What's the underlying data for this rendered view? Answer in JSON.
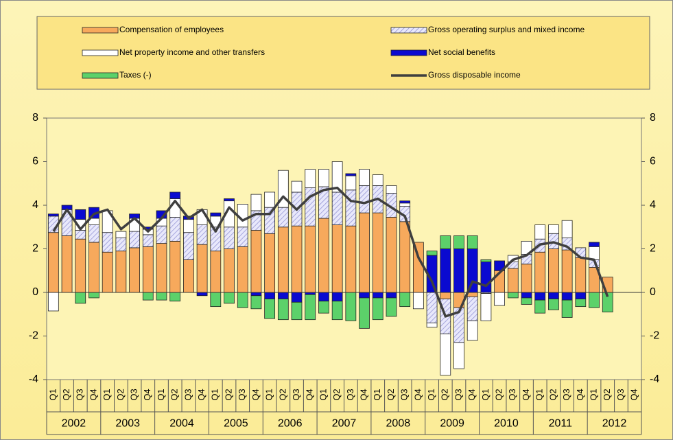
{
  "chart_data": {
    "type": "bar",
    "categories": [
      "Q1",
      "Q2",
      "Q3",
      "Q4",
      "Q1",
      "Q2",
      "Q3",
      "Q4",
      "Q1",
      "Q2",
      "Q3",
      "Q4",
      "Q1",
      "Q2",
      "Q3",
      "Q4",
      "Q1",
      "Q2",
      "Q3",
      "Q4",
      "Q1",
      "Q2",
      "Q3",
      "Q4",
      "Q1",
      "Q2",
      "Q3",
      "Q4",
      "Q1",
      "Q2",
      "Q3",
      "Q4",
      "Q1",
      "Q2",
      "Q3",
      "Q4",
      "Q1",
      "Q2",
      "Q3",
      "Q4",
      "Q1",
      "Q2",
      "Q3",
      "Q4"
    ],
    "years": [
      "2002",
      "2003",
      "2004",
      "2005",
      "2006",
      "2007",
      "2008",
      "2009",
      "2010",
      "2011",
      "2012"
    ],
    "ylim": [
      -4,
      8
    ],
    "yticks": [
      -4,
      -2,
      0,
      2,
      4,
      6,
      8
    ],
    "y2lim": [
      -4,
      8
    ],
    "y2ticks": [
      -4,
      -2,
      0,
      2,
      4,
      6,
      8
    ],
    "series": [
      {
        "name": "Compensation of employees",
        "color": "#f7a95c",
        "values": [
          2.75,
          2.6,
          2.45,
          2.3,
          1.85,
          1.9,
          2.05,
          2.1,
          2.25,
          2.35,
          1.5,
          2.2,
          1.9,
          2.0,
          2.1,
          2.85,
          2.7,
          3.0,
          3.05,
          3.05,
          3.4,
          3.1,
          3.05,
          3.65,
          3.65,
          3.45,
          3.25,
          2.3,
          0,
          -0.3,
          -0.7,
          -0.2,
          0,
          1.0,
          1.1,
          1.3,
          1.85,
          2.0,
          1.95,
          1.6,
          1.15,
          0.7,
          null,
          null
        ]
      },
      {
        "name": "Gross operating surplus and mixed income",
        "color": "#dcdcf5",
        "hatch": true,
        "values": [
          0.75,
          1.2,
          0.4,
          0.8,
          0.9,
          0.6,
          0.75,
          0.55,
          0.8,
          1.1,
          1.25,
          0.9,
          1.1,
          1.0,
          0.9,
          0.9,
          1.2,
          0.9,
          1.55,
          1.75,
          1.45,
          1.5,
          1.65,
          1.25,
          1.25,
          1.1,
          0.7,
          0,
          -1.4,
          -1.6,
          -1.6,
          -1.1,
          -0.05,
          0,
          0.3,
          0.45,
          0.6,
          0.7,
          0.55,
          0.45,
          0.35,
          0,
          null,
          null
        ]
      },
      {
        "name": "Net property income and other transfers",
        "color": "#ffffff",
        "values": [
          -0.85,
          0,
          0.5,
          0.3,
          1.0,
          0.3,
          0.6,
          0.25,
          0.35,
          0.85,
          0.6,
          0.7,
          0.5,
          1.2,
          1.05,
          0.75,
          0.7,
          1.7,
          0.5,
          0.85,
          0.8,
          1.4,
          0.65,
          0.75,
          0.5,
          0.35,
          0.15,
          -0.75,
          -0.2,
          -1.9,
          -1.2,
          -0.9,
          -1.25,
          -0.6,
          0.3,
          0.6,
          0.65,
          0.4,
          0.8,
          0,
          0.6,
          0,
          null,
          null
        ]
      },
      {
        "name": "Net social benefits",
        "color": "#0a0ad0",
        "values": [
          0.1,
          0.2,
          0.45,
          0.5,
          0,
          0,
          0.2,
          0.1,
          0.35,
          0.3,
          0.15,
          -0.15,
          0.15,
          0.1,
          0,
          -0.15,
          -0.3,
          -0.3,
          -0.45,
          -0.1,
          -0.4,
          -0.4,
          0.1,
          -0.25,
          -0.25,
          -0.25,
          0.1,
          0,
          1.7,
          2.0,
          2.0,
          2.0,
          1.4,
          0.45,
          0,
          -0.25,
          -0.35,
          -0.3,
          -0.35,
          -0.3,
          0.2,
          0,
          null,
          null
        ]
      },
      {
        "name": "Taxes (-)",
        "color": "#5cd16a",
        "values": [
          0,
          0,
          -0.5,
          -0.25,
          0,
          0,
          0,
          -0.35,
          -0.35,
          -0.4,
          0,
          0,
          -0.65,
          -0.5,
          -0.7,
          -0.6,
          -0.9,
          -0.95,
          -0.8,
          -1.15,
          -0.55,
          -0.85,
          -1.3,
          -1.4,
          -1.0,
          -0.85,
          -0.65,
          0,
          0.2,
          0.6,
          0.6,
          0.6,
          0.1,
          0,
          -0.25,
          -0.3,
          -0.6,
          -0.5,
          -0.8,
          -0.35,
          -0.7,
          -0.9,
          null,
          null
        ]
      },
      {
        "name": "Gross disposable income",
        "color": "#3f3f3f",
        "type": "line",
        "values": [
          2.8,
          3.8,
          2.9,
          3.6,
          3.8,
          2.9,
          3.4,
          2.8,
          3.4,
          4.2,
          3.4,
          3.8,
          2.8,
          3.9,
          3.3,
          3.6,
          3.6,
          4.4,
          3.8,
          4.4,
          4.7,
          4.8,
          4.2,
          4.1,
          4.3,
          3.9,
          3.5,
          1.6,
          0.5,
          -1.1,
          -0.9,
          0.5,
          0.3,
          0.9,
          1.5,
          1.7,
          2.2,
          2.3,
          2.1,
          1.6,
          1.5,
          -0.2,
          null,
          null
        ]
      }
    ]
  }
}
